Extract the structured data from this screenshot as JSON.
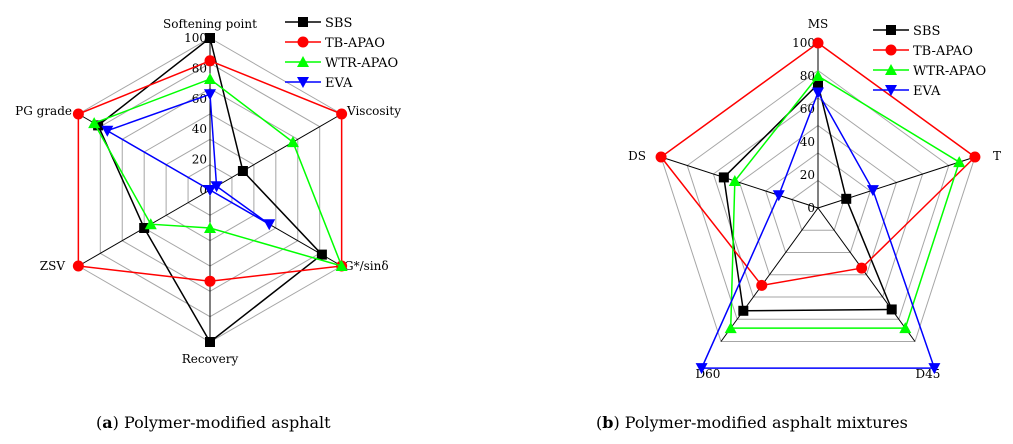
{
  "colors": {
    "grid": "#a6a6a6"
  },
  "chart_data": [
    {
      "type": "radar",
      "caption": {
        "letter": "a",
        "text": ") Polymer-modified asphalt"
      },
      "axes": [
        "Softening point",
        "Viscosity",
        "G*/sinδ",
        "Recovery",
        "ZSV",
        "PG grade"
      ],
      "rlim": [
        0,
        100
      ],
      "ticks": [
        "0",
        "20",
        "40",
        "60",
        "80",
        "100"
      ],
      "grid": true,
      "legend_position": "top-right",
      "series": [
        {
          "name": "SBS",
          "color": "#000000",
          "marker": "square",
          "values": [
            100,
            25,
            85,
            100,
            50,
            85
          ]
        },
        {
          "name": "TB-APAO",
          "color": "#ff0000",
          "marker": "circle",
          "values": [
            85,
            100,
            100,
            60,
            100,
            100
          ]
        },
        {
          "name": "WTR-APAO",
          "color": "#00ff00",
          "marker": "triangle-up",
          "values": [
            73,
            63,
            100,
            25,
            45,
            88
          ]
        },
        {
          "name": "EVA",
          "color": "#0000ff",
          "marker": "triangle-down",
          "values": [
            63,
            5,
            45,
            0,
            0,
            78
          ]
        }
      ]
    },
    {
      "type": "radar",
      "caption": {
        "letter": "b",
        "text": ") Polymer-modified asphalt mixtures"
      },
      "axes": [
        "MS",
        "T",
        "D45",
        "D60",
        "DS"
      ],
      "rlim": [
        0,
        100
      ],
      "ticks": [
        "0",
        "20",
        "40",
        "60",
        "80",
        "100"
      ],
      "grid": true,
      "legend_position": "top-right",
      "series": [
        {
          "name": "SBS",
          "color": "#000000",
          "marker": "square",
          "values": [
            75,
            18,
            76,
            77,
            60
          ]
        },
        {
          "name": "TB-APAO",
          "color": "#ff0000",
          "marker": "circle",
          "values": [
            100,
            100,
            45,
            58,
            100
          ]
        },
        {
          "name": "WTR-APAO",
          "color": "#00ff00",
          "marker": "triangle-up",
          "values": [
            80,
            90,
            90,
            90,
            53
          ]
        },
        {
          "name": "EVA",
          "color": "#0000ff",
          "marker": "triangle-down",
          "values": [
            70,
            35,
            120,
            120,
            25
          ]
        }
      ]
    }
  ]
}
